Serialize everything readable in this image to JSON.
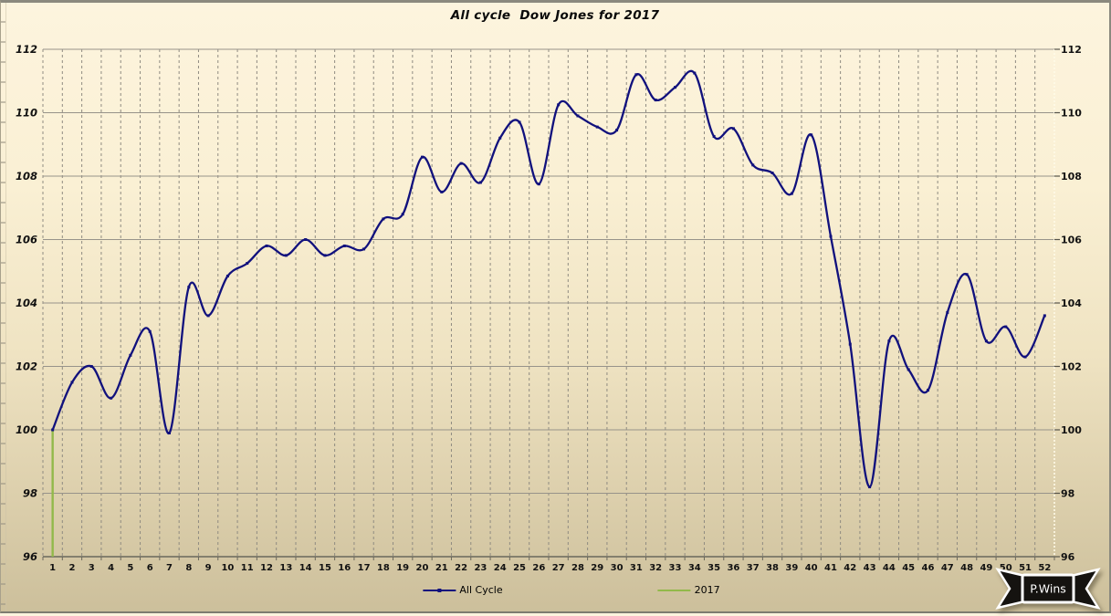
{
  "window": {
    "title": "All cycle  Dow Jones for 2017"
  },
  "chart_data": {
    "type": "line",
    "title": "All cycle  Dow Jones for 2017",
    "xlabel": "",
    "ylabel": "",
    "ylim": [
      96,
      112
    ],
    "y_ticks": [
      96,
      98,
      100,
      102,
      104,
      106,
      108,
      110,
      112
    ],
    "mirror_y_axis": true,
    "grid": {
      "horizontal": "solid",
      "vertical": "dashed"
    },
    "legend_position": "bottom",
    "x_categories": [
      "1",
      "2",
      "3",
      "4",
      "5",
      "6",
      "7",
      "8",
      "9",
      "10",
      "11",
      "12",
      "13",
      "14",
      "15",
      "16",
      "17",
      "18",
      "19",
      "20",
      "21",
      "22",
      "23",
      "24",
      "25",
      "26",
      "27",
      "28",
      "29",
      "30",
      "31",
      "32",
      "33",
      "34",
      "35",
      "36",
      "37",
      "38",
      "39",
      "40",
      "41",
      "42",
      "43",
      "44",
      "45",
      "46",
      "47",
      "48",
      "49",
      "50",
      "51",
      "52"
    ],
    "series": [
      {
        "name": "All Cycle",
        "color": "#11117D",
        "marker": "square",
        "smooth": true,
        "values": [
          100.0,
          101.5,
          102.0,
          101.0,
          102.35,
          103.1,
          99.9,
          104.5,
          103.6,
          104.85,
          105.25,
          105.8,
          105.5,
          106.0,
          105.5,
          105.8,
          105.7,
          106.65,
          106.8,
          108.6,
          107.5,
          108.4,
          107.8,
          109.2,
          109.7,
          107.75,
          110.25,
          109.9,
          109.55,
          109.45,
          111.2,
          110.4,
          110.8,
          111.25,
          109.25,
          109.5,
          108.35,
          108.1,
          107.45,
          109.3,
          106.1,
          102.7,
          98.2,
          102.8,
          101.9,
          101.25,
          103.7,
          104.9,
          102.8,
          103.25,
          102.3,
          103.6
        ]
      },
      {
        "name": "2017",
        "color": "#92B94A",
        "shape": "vertical-segment",
        "week": 1,
        "from": 96,
        "to": 100
      }
    ]
  },
  "legend": {
    "items": [
      {
        "label": "All Cycle",
        "color": "#11117D"
      },
      {
        "label": "2017",
        "color": "#92B94A"
      }
    ]
  },
  "branding": {
    "label": "P.Wins"
  },
  "colors": {
    "background_top": "#FDF4DE",
    "background_bottom": "#CCBF9B",
    "grid_solid": "#97938A",
    "grid_dashed": "#8F8B81",
    "axis_line": "#6A685C",
    "series_blue": "#11117D",
    "series_green": "#92B94A",
    "label_text": "#111111"
  }
}
